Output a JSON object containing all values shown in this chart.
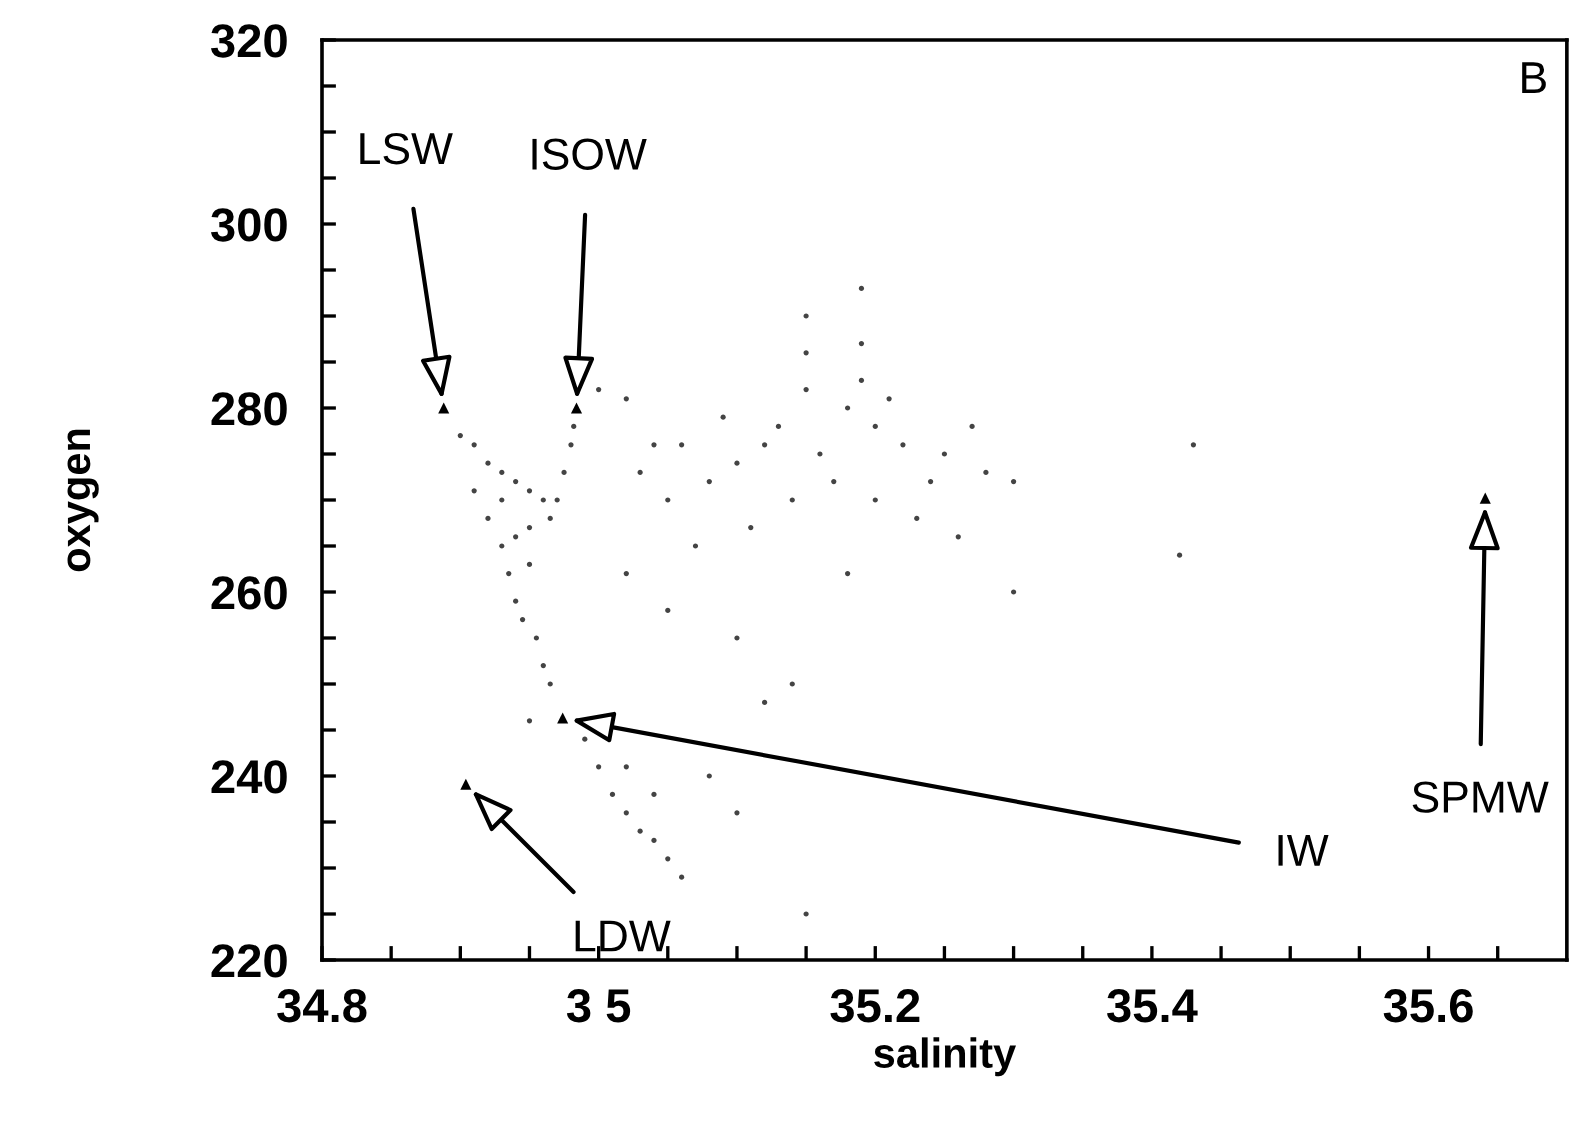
{
  "chart_data": {
    "type": "scatter",
    "xlabel": "salinity",
    "ylabel": "oxygen",
    "xlim": [
      34.8,
      35.7
    ],
    "ylim": [
      220,
      320
    ],
    "xticks": [
      {
        "value": 34.8,
        "label": "34.8"
      },
      {
        "value": 34.85,
        "label": null
      },
      {
        "value": 34.9,
        "label": null
      },
      {
        "value": 34.95,
        "label": null
      },
      {
        "value": 35.0,
        "label": "3 5"
      },
      {
        "value": 35.05,
        "label": null
      },
      {
        "value": 35.1,
        "label": null
      },
      {
        "value": 35.15,
        "label": null
      },
      {
        "value": 35.2,
        "label": "35.2"
      },
      {
        "value": 35.25,
        "label": null
      },
      {
        "value": 35.3,
        "label": null
      },
      {
        "value": 35.35,
        "label": null
      },
      {
        "value": 35.4,
        "label": "35.4"
      },
      {
        "value": 35.45,
        "label": null
      },
      {
        "value": 35.5,
        "label": null
      },
      {
        "value": 35.55,
        "label": null
      },
      {
        "value": 35.6,
        "label": "35.6"
      },
      {
        "value": 35.65,
        "label": null
      }
    ],
    "yticks": [
      220,
      {
        "value": 225,
        "label": null
      },
      {
        "value": 230,
        "label": null
      },
      {
        "value": 235,
        "label": null
      },
      240,
      {
        "value": 245,
        "label": null
      },
      {
        "value": 250,
        "label": null
      },
      {
        "value": 255,
        "label": null
      },
      260,
      {
        "value": 265,
        "label": null
      },
      {
        "value": 270,
        "label": null
      },
      {
        "value": 275,
        "label": null
      },
      280,
      {
        "value": 285,
        "label": null
      },
      {
        "value": 290,
        "label": null
      },
      {
        "value": 295,
        "label": null
      },
      300,
      {
        "value": 305,
        "label": null
      },
      {
        "value": 310,
        "label": null
      },
      {
        "value": 315,
        "label": null
      },
      320
    ],
    "grid": false,
    "legend": false,
    "series": [
      {
        "color": "#444444",
        "marker": "circle",
        "x": [
          34.9,
          34.91,
          34.92,
          34.93,
          34.94,
          34.95,
          34.96,
          34.965,
          34.97,
          34.975,
          34.98,
          34.982,
          34.92,
          34.93,
          34.935,
          34.94,
          34.945,
          34.95,
          34.955,
          34.96,
          34.965,
          34.94,
          34.95,
          34.93,
          34.91,
          34.99,
          35.0,
          35.01,
          35.02,
          35.03,
          35.04,
          35.05,
          35.06,
          35.02,
          35.04,
          35.1,
          35.15,
          35.12,
          35.08,
          34.95,
          35.15,
          35.15,
          35.15,
          35.19,
          35.19,
          35.19,
          35.18,
          35.2,
          35.22,
          35.25,
          35.28,
          35.3,
          35.12,
          35.1,
          35.08,
          35.05,
          35.03,
          35.06,
          35.09,
          35.13,
          35.16,
          35.17,
          35.2,
          35.23,
          35.26,
          35.14,
          35.11,
          35.07,
          35.02,
          35.05,
          35.1,
          35.14,
          35.18,
          35.24,
          35.27,
          35.21,
          35.0,
          35.02,
          35.04,
          35.42,
          35.43,
          35.3
        ],
        "values": [
          277,
          276,
          274,
          273,
          272,
          271,
          270,
          268,
          270,
          273,
          276,
          278,
          268,
          265,
          262,
          259,
          257,
          263,
          255,
          252,
          250,
          266,
          267,
          270,
          271,
          244,
          241,
          238,
          236,
          234,
          233,
          231,
          229,
          241,
          238,
          236,
          225,
          248,
          240,
          246,
          290,
          286,
          282,
          293,
          287,
          283,
          280,
          278,
          276,
          275,
          273,
          272,
          276,
          274,
          272,
          270,
          273,
          276,
          279,
          278,
          275,
          272,
          270,
          268,
          266,
          270,
          267,
          265,
          262,
          258,
          255,
          250,
          262,
          272,
          278,
          281,
          282,
          281,
          276,
          264,
          276,
          260
        ]
      },
      {
        "color": "#000000",
        "marker": "triangle",
        "x": [
          34.888,
          34.984,
          34.974,
          34.904,
          35.641
        ],
        "values": [
          280,
          280,
          246.3,
          239.1,
          270.2
        ]
      }
    ],
    "annotations": [
      {
        "text": "LSW",
        "x": 34.888,
        "y": 280
      },
      {
        "text": "ISOW",
        "x": 34.984,
        "y": 280
      },
      {
        "text": "IW",
        "x": 34.974,
        "y": 246.3
      },
      {
        "text": "LDW",
        "x": 34.904,
        "y": 239.1
      },
      {
        "text": "SPMW",
        "x": 35.641,
        "y": 270.2
      },
      "B"
    ]
  }
}
